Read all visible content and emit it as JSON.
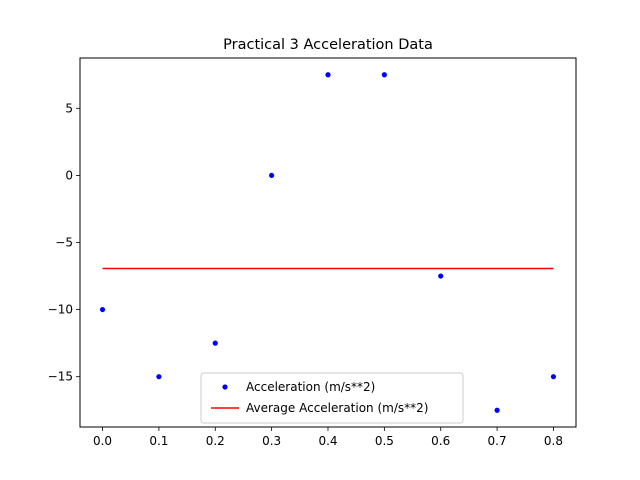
{
  "chart_data": {
    "type": "scatter",
    "title": "Practical 3 Acceleration Data",
    "xlabel": "",
    "ylabel": "",
    "xlim": [
      -0.04,
      0.84
    ],
    "ylim": [
      -18.75,
      8.75
    ],
    "xticks": [
      0.0,
      0.1,
      0.2,
      0.3,
      0.4,
      0.5,
      0.6,
      0.7,
      0.8
    ],
    "xtick_labels": [
      "0.0",
      "0.1",
      "0.2",
      "0.3",
      "0.4",
      "0.5",
      "0.6",
      "0.7",
      "0.8"
    ],
    "yticks": [
      -15,
      -10,
      -5,
      0,
      5
    ],
    "ytick_labels": [
      "−15",
      "−10",
      "−5",
      "0",
      "5"
    ],
    "grid": false,
    "legend_position": "lower center",
    "series": [
      {
        "name": "Acceleration (m/s**2)",
        "kind": "points",
        "color": "#0000ff",
        "x": [
          0.0,
          0.1,
          0.2,
          0.3,
          0.4,
          0.5,
          0.6,
          0.7,
          0.8
        ],
        "y": [
          -10,
          -15,
          -12.5,
          0,
          7.5,
          7.5,
          -7.5,
          -17.5,
          -15
        ]
      },
      {
        "name": "Average Acceleration (m/s**2)",
        "kind": "line",
        "color": "#ff0000",
        "x": [
          0.0,
          0.8
        ],
        "y": [
          -6.94,
          -6.94
        ]
      }
    ]
  }
}
